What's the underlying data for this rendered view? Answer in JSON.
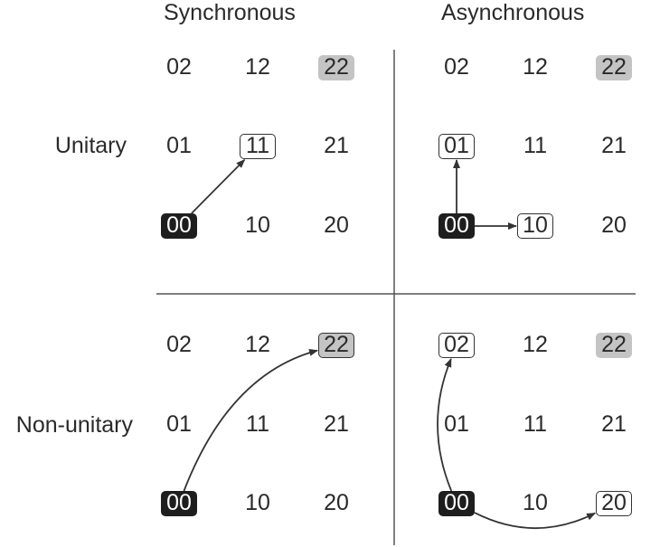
{
  "columns": [
    "Synchronous",
    "Asynchronous"
  ],
  "rows": [
    "Unitary",
    "Non-unitary"
  ],
  "grid_rows": [
    [
      "02",
      "12",
      "22"
    ],
    [
      "01",
      "11",
      "21"
    ],
    [
      "00",
      "10",
      "20"
    ]
  ],
  "panels": [
    {
      "id": "synchronous-unitary",
      "source": "00",
      "fixed": "22",
      "targets": [
        "11"
      ],
      "transitions": [
        {
          "from": "00",
          "to": "11",
          "shape": "straight"
        }
      ]
    },
    {
      "id": "asynchronous-unitary",
      "source": "00",
      "fixed": "22",
      "targets": [
        "01",
        "10"
      ],
      "transitions": [
        {
          "from": "00",
          "to": "01",
          "shape": "straight"
        },
        {
          "from": "00",
          "to": "10",
          "shape": "straight"
        }
      ]
    },
    {
      "id": "synchronous-non-unitary",
      "source": "00",
      "fixed": "22",
      "targets": [
        "22"
      ],
      "transitions": [
        {
          "from": "00",
          "to": "22",
          "shape": "curved"
        }
      ]
    },
    {
      "id": "asynchronous-non-unitary",
      "source": "00",
      "fixed": "22",
      "targets": [
        "02",
        "20"
      ],
      "transitions": [
        {
          "from": "00",
          "to": "02",
          "shape": "curved"
        },
        {
          "from": "00",
          "to": "20",
          "shape": "curved"
        }
      ]
    }
  ],
  "colors": {
    "source_fill": "#1e1e1e",
    "fixed_fill": "#c4c4c4",
    "line": "#333333",
    "text": "#2a2a2a"
  }
}
